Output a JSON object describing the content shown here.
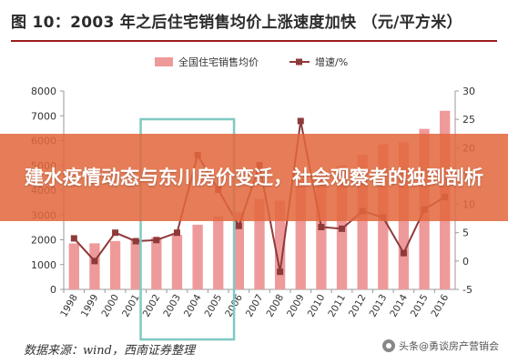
{
  "figure": {
    "title": "图 10：2003 年之后住宅销售均价上涨速度加快 （元/平方米）",
    "source": "数据来源：wind，西南证券整理",
    "watermark": "头条@勇谈房产营销会"
  },
  "banner": {
    "text": "建水疫情动态与东川房价变迁，社会观察者的独到剖析"
  },
  "chart_data": {
    "type": "bar+line",
    "title": "图 10：2003 年之后住宅销售均价上涨速度加快 （元/平方米）",
    "categories": [
      "1998",
      "1999",
      "2000",
      "2001",
      "2002",
      "2003",
      "2004",
      "2005",
      "2006",
      "2007",
      "2008",
      "2009",
      "2010",
      "2011",
      "2012",
      "2013",
      "2014",
      "2015",
      "2016"
    ],
    "series": [
      {
        "name": "全国住宅销售均价",
        "axis": "left",
        "kind": "bar",
        "color": "#ef9a9a",
        "values": [
          1854,
          1857,
          1948,
          2017,
          2092,
          2197,
          2608,
          2937,
          3119,
          3645,
          3576,
          4459,
          4725,
          4993,
          5430,
          5850,
          5933,
          6473,
          7203
        ]
      },
      {
        "name": "增速/%",
        "axis": "right",
        "kind": "line",
        "color": "#8e3a3a",
        "values": [
          4,
          0,
          5,
          3.5,
          3.7,
          5,
          18.7,
          12.6,
          6.2,
          16.9,
          -1.9,
          24.7,
          6,
          5.7,
          8.8,
          7.7,
          1.4,
          9.1,
          11.3
        ]
      }
    ],
    "y_left": {
      "min": 0,
      "max": 8000,
      "ticks": [
        0,
        1000,
        2000,
        3000,
        4000,
        5000,
        6000,
        7000,
        8000
      ]
    },
    "y_right": {
      "min": -5,
      "max": 30,
      "ticks": [
        -5,
        0,
        5,
        10,
        15,
        20,
        25,
        30
      ]
    },
    "legend": "top-center",
    "highlight_range": [
      "2002",
      "2005"
    ],
    "highlight_color": "#7fc9c3"
  }
}
